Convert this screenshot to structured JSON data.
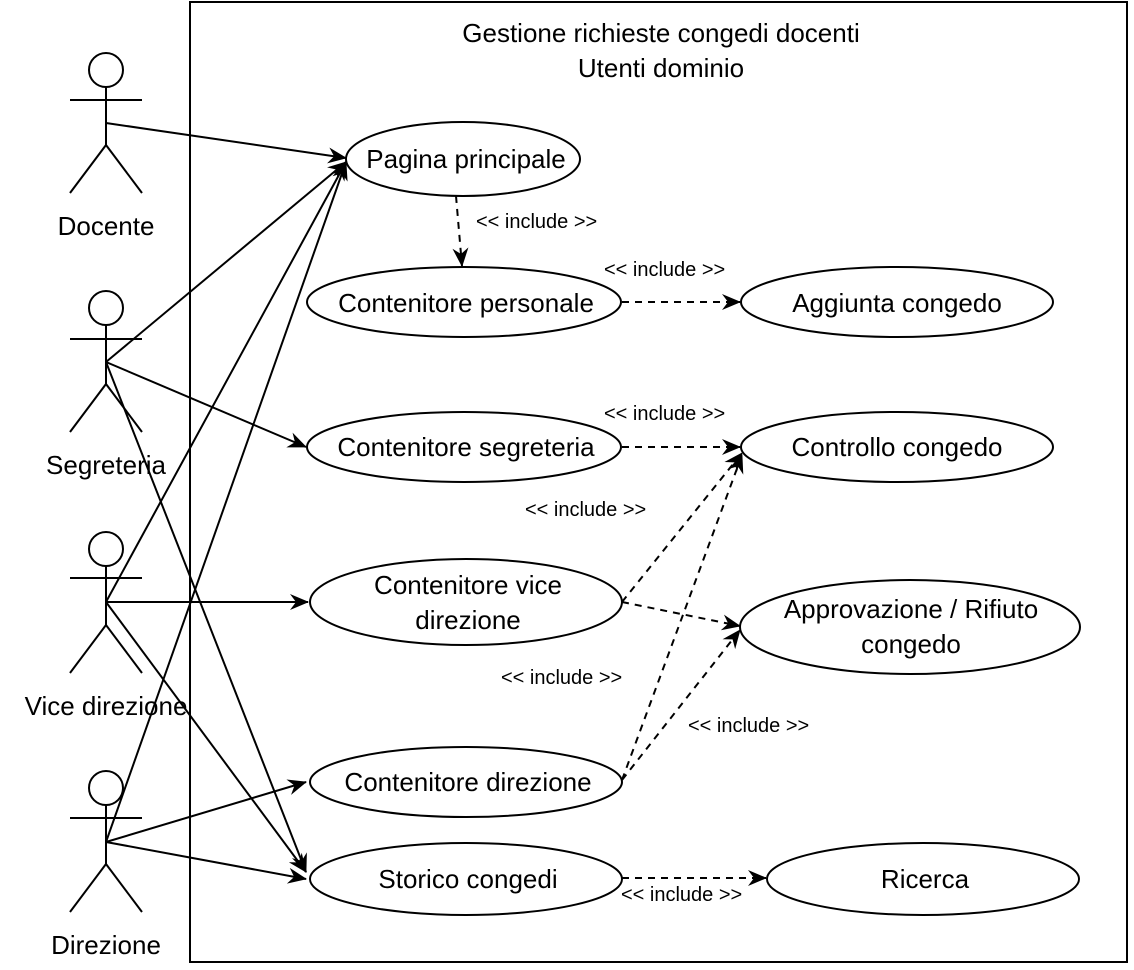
{
  "diagram": {
    "system": {
      "title_line1": "Gestione richieste congedi docenti",
      "title_line2": "Utenti dominio"
    },
    "actors": [
      {
        "id": "docente",
        "label": "Docente"
      },
      {
        "id": "segreteria",
        "label": "Segreteria"
      },
      {
        "id": "vice",
        "label": "Vice direzione"
      },
      {
        "id": "direzione",
        "label": "Direzione"
      }
    ],
    "use_cases": {
      "pagina": "Pagina principale",
      "cpers": "Contenitore personale",
      "aggiunta": "Aggiunta congedo",
      "cseg": "Contenitore segreteria",
      "controllo": "Controllo congedo",
      "cvice_1": "Contenitore vice",
      "cvice_2": "direzione",
      "approv_1": "Approvazione / Rifiuto",
      "approv_2": "congedo",
      "cdir": "Contenitore direzione",
      "storico": "Storico congedi",
      "ricerca": "Ricerca"
    },
    "include_label": "<< include >>",
    "associations": [
      [
        "Docente",
        "Pagina principale"
      ],
      [
        "Segreteria",
        "Pagina principale"
      ],
      [
        "Segreteria",
        "Contenitore segreteria"
      ],
      [
        "Segreteria",
        "Storico congedi"
      ],
      [
        "Vice direzione",
        "Pagina principale"
      ],
      [
        "Vice direzione",
        "Contenitore vice direzione"
      ],
      [
        "Vice direzione",
        "Storico congedi"
      ],
      [
        "Direzione",
        "Pagina principale"
      ],
      [
        "Direzione",
        "Contenitore direzione"
      ],
      [
        "Direzione",
        "Storico congedi"
      ]
    ],
    "includes": [
      [
        "Pagina principale",
        "Contenitore personale"
      ],
      [
        "Contenitore personale",
        "Aggiunta congedo"
      ],
      [
        "Contenitore segreteria",
        "Controllo congedo"
      ],
      [
        "Contenitore vice direzione",
        "Controllo congedo"
      ],
      [
        "Contenitore vice direzione",
        "Approvazione / Rifiuto congedo"
      ],
      [
        "Contenitore direzione",
        "Controllo congedo"
      ],
      [
        "Contenitore direzione",
        "Approvazione / Rifiuto congedo"
      ],
      [
        "Storico congedi",
        "Ricerca"
      ]
    ]
  }
}
